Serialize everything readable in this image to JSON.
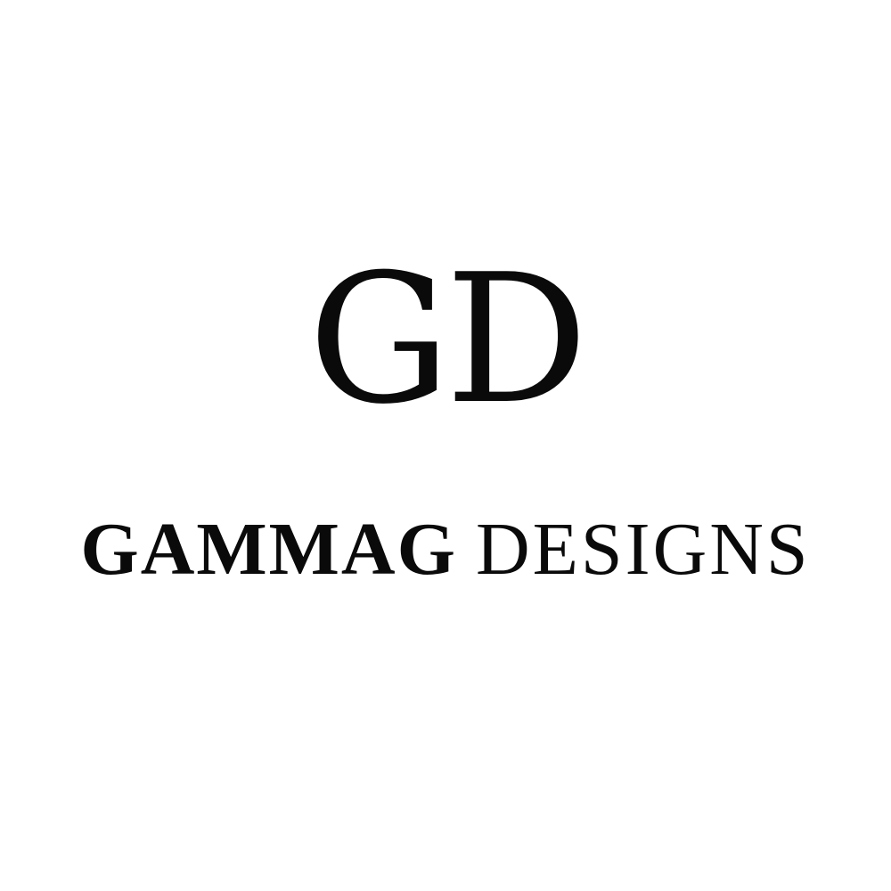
{
  "logo": {
    "monogram": "GD",
    "brand_bold": "GAMMAG",
    "brand_light": "DESIGNS"
  },
  "colors": {
    "background": "#ffffff",
    "ink": "#0a0a0a"
  }
}
